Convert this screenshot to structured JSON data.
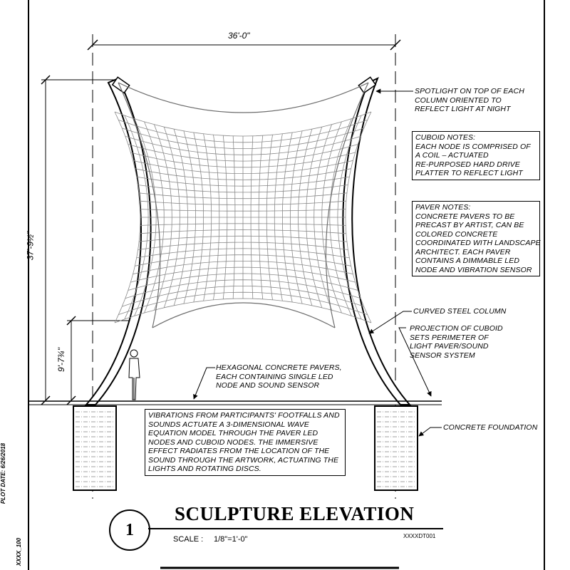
{
  "dimensions": {
    "width_top": "36'-0\"",
    "height_total": "37'-9½\"",
    "height_lower": "9'-7¾\""
  },
  "annotations": {
    "spotlight": [
      "SPOTLIGHT ON TOP OF EACH",
      "COLUMN ORIENTED TO",
      "REFLECT LIGHT AT NIGHT"
    ],
    "cuboid_notes": [
      "CUBOID NOTES:",
      "EACH NODE IS COMPRISED OF",
      "A COIL – ACTUATED",
      "RE-PURPOSED HARD DRIVE",
      "PLATTER TO REFLECT LIGHT"
    ],
    "paver_notes": [
      "PAVER NOTES:",
      "CONCRETE PAVERS TO BE",
      "PRECAST BY ARTIST, CAN BE",
      "COLORED CONCRETE",
      "COORDINATED WITH LANDSCAPE",
      "ARCHITECT.  EACH PAVER",
      "CONTAINS A DIMMABLE LED",
      "NODE AND VIBRATION SENSOR"
    ],
    "curved_column": [
      "CURVED STEEL COLUMN"
    ],
    "projection": [
      "PROJECTION OF CUBOID",
      "SETS PERIMETER OF",
      "LIGHT PAVER/SOUND",
      "SENSOR SYSTEM"
    ],
    "hex_pavers": [
      "HEXAGONAL CONCRETE PAVERS,",
      "EACH CONTAINING SINGLE LED",
      "NODE AND SOUND SENSOR"
    ],
    "vibrations": [
      "VIBRATIONS FROM PARTICIPANTS' FOOTFALLS AND",
      "SOUNDS ACTUATE A 3-DIMENSIONAL WAVE",
      "EQUATION MODEL THROUGH THE PAVER LED",
      "NODES AND CUBOID NODES. THE IMMERSIVE",
      "EFFECT RADIATES FROM THE LOCATION OF THE",
      "SOUND THROUGH THE ARTWORK, ACTUATING THE",
      "LIGHTS AND ROTATING DISCS."
    ],
    "foundation": [
      "CONCRETE FOUNDATION"
    ]
  },
  "title_block": {
    "detail_number": "1",
    "title": "SCULPTURE ELEVATION",
    "scale_label": "SCALE :",
    "scale_value": "1/8\"=1'-0\"",
    "drawing_code": "XXXXDT001",
    "plot_date": "PLOT DATE: 6/26/2018",
    "file_code": "XXXX_100"
  },
  "colors": {
    "line": "#000000",
    "mesh": "#8a8a8a",
    "background": "#ffffff"
  }
}
